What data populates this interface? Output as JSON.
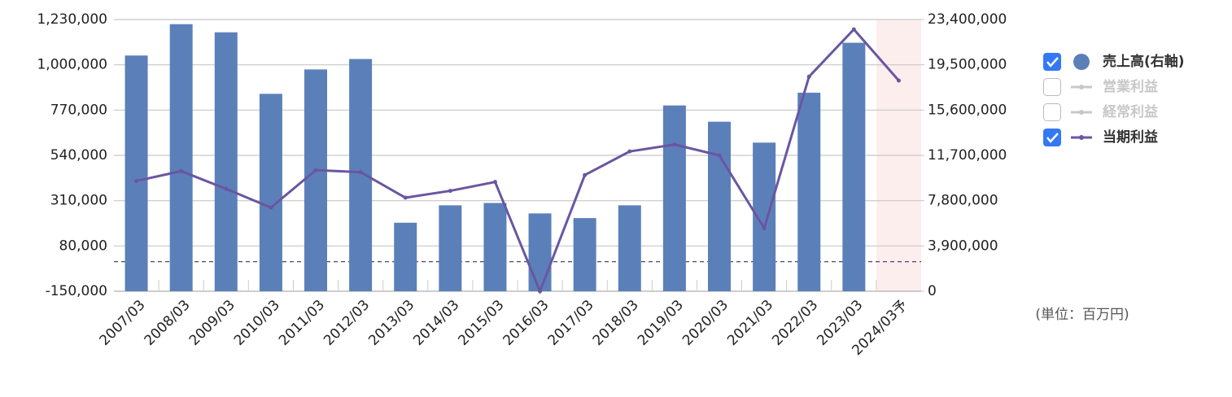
{
  "chart_data": {
    "type": "bar-line",
    "categories": [
      "2007/03",
      "2008/03",
      "2009/03",
      "2010/03",
      "2011/03",
      "2012/03",
      "2013/03",
      "2014/03",
      "2015/03",
      "2016/03",
      "2017/03",
      "2018/03",
      "2019/03",
      "2020/03",
      "2021/03",
      "2022/03",
      "2023/03",
      "2024/03予"
    ],
    "series": [
      {
        "name": "売上高(右軸)",
        "type": "bar",
        "axis": "y2",
        "color": "#5b80b9",
        "visible": true,
        "values": [
          20300000,
          23000000,
          22300000,
          17000000,
          19100000,
          20000000,
          5900000,
          7400000,
          7600000,
          6700000,
          6300000,
          7400000,
          16000000,
          14600000,
          12800000,
          17100000,
          21400000,
          null
        ]
      },
      {
        "name": "営業利益",
        "type": "line",
        "color": "#c8c8c8",
        "visible": false,
        "values": [
          null,
          null,
          null,
          null,
          null,
          null,
          null,
          null,
          null,
          null,
          null,
          null,
          null,
          null,
          null,
          null,
          null,
          null
        ]
      },
      {
        "name": "経常利益",
        "type": "line",
        "color": "#c8c8c8",
        "visible": false,
        "values": [
          null,
          null,
          null,
          null,
          null,
          null,
          null,
          null,
          null,
          null,
          null,
          null,
          null,
          null,
          null,
          null,
          null,
          null
        ]
      },
      {
        "name": "当期利益",
        "type": "line",
        "color": "#6a56a0",
        "visible": true,
        "values": [
          410000,
          460000,
          370000,
          275000,
          465000,
          455000,
          325000,
          360000,
          405000,
          -150000,
          440000,
          560000,
          595000,
          540000,
          170000,
          940000,
          1180000,
          920000
        ]
      }
    ],
    "ylim": [
      -150000,
      1230000
    ],
    "yticks": [
      {
        "value": -150000,
        "label": "-150,000"
      },
      {
        "value": 80000,
        "label": "80,000"
      },
      {
        "value": 310000,
        "label": "310,000"
      },
      {
        "value": 540000,
        "label": "540,000"
      },
      {
        "value": 770000,
        "label": "770,000"
      },
      {
        "value": 1000000,
        "label": "1,000,000"
      },
      {
        "value": 1230000,
        "label": "1,230,000"
      }
    ],
    "y2lim": [
      0,
      23400000
    ],
    "y2ticks": [
      0,
      {
        "value": 3900000,
        "label": "3,900,000"
      },
      {
        "value": 7800000,
        "label": "7,800,000"
      },
      {
        "value": 11700000,
        "label": "11,700,000"
      },
      {
        "value": 15600000,
        "label": "15,600,000"
      },
      {
        "value": 19500000,
        "label": "19,500,000"
      },
      {
        "value": 23400000,
        "label": "23,400,000"
      }
    ],
    "grid": true,
    "highlight": "2024/03予",
    "unit_note": "(単位：百万円)"
  }
}
